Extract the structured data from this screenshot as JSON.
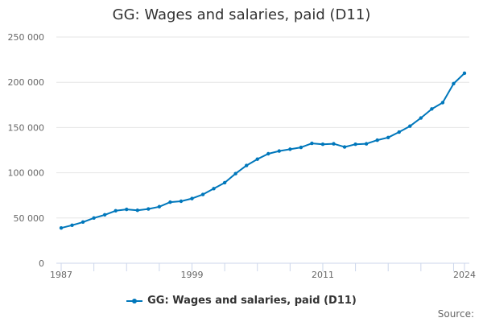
{
  "chart_data": {
    "type": "line",
    "title": "GG: Wages and salaries, paid (D11)",
    "xlabel": "",
    "ylabel": "",
    "x": [
      1987,
      1988,
      1989,
      1990,
      1991,
      1992,
      1993,
      1994,
      1995,
      1996,
      1997,
      1998,
      1999,
      2000,
      2001,
      2002,
      2003,
      2004,
      2005,
      2006,
      2007,
      2008,
      2009,
      2010,
      2011,
      2012,
      2013,
      2014,
      2015,
      2016,
      2017,
      2018,
      2019,
      2020,
      2021,
      2022,
      2023,
      2024
    ],
    "series": [
      {
        "name": "GG: Wages and salaries, paid (D11)",
        "color": "#0077bb",
        "values": [
          39000,
          42000,
          45500,
          50000,
          53500,
          58000,
          59500,
          58500,
          60000,
          62500,
          67500,
          68500,
          71500,
          76000,
          82500,
          89000,
          99000,
          108000,
          115000,
          121000,
          124000,
          126000,
          128000,
          132500,
          131500,
          132000,
          128500,
          131500,
          132000,
          136000,
          139000,
          145000,
          151500,
          160500,
          170500,
          177500,
          198500,
          210000
        ]
      }
    ],
    "ylim": [
      0,
      250000
    ],
    "y_ticks": [
      0,
      50000,
      100000,
      150000,
      200000,
      250000
    ],
    "y_tick_labels": [
      "0",
      "50 000",
      "100 000",
      "150 000",
      "200 000",
      "250 000"
    ],
    "x_tick_labels": [
      "1987",
      "1999",
      "2011",
      "2024"
    ],
    "grid": "horizontal",
    "legend_position": "bottom-center"
  },
  "footer": {
    "source_label": "Source:"
  }
}
